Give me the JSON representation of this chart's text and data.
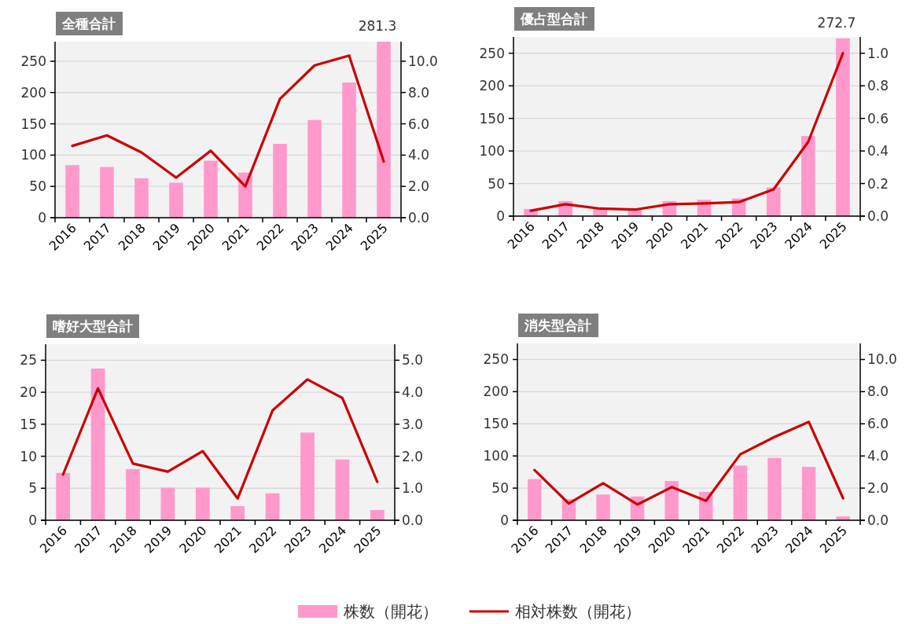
{
  "chart_data": [
    {
      "type": "bar",
      "title": "全種合計",
      "categories": [
        "2016",
        "2017",
        "2018",
        "2019",
        "2020",
        "2021",
        "2022",
        "2023",
        "2024",
        "2025"
      ],
      "ylim": [
        0,
        281.3
      ],
      "yticks": [
        0,
        50,
        100,
        150,
        200,
        250
      ],
      "y2lim": [
        0,
        11.25
      ],
      "y2ticks": [
        {
          "value": 0,
          "label": "0.0"
        },
        {
          "value": 2,
          "label": "2.0"
        },
        {
          "value": 4,
          "label": "4.0"
        },
        {
          "value": 6,
          "label": "6.0"
        },
        {
          "value": 8,
          "label": "8.0"
        },
        {
          "value": 10,
          "label": "10.0"
        }
      ],
      "grid": "y",
      "legend": "bottom",
      "series": [
        {
          "name": "株数（開花）",
          "type": "bar",
          "color": "#ff99cc",
          "values": [
            84,
            81,
            63,
            56,
            91,
            72,
            118,
            156,
            216,
            281.3
          ],
          "value_labels": [
            null,
            null,
            null,
            null,
            null,
            null,
            null,
            null,
            null,
            "281.3"
          ]
        },
        {
          "name": "相対株数（開花）",
          "type": "line",
          "axis": "y2",
          "color": "#cc0000",
          "values": [
            4.59,
            5.26,
            4.17,
            2.56,
            4.28,
            2.0,
            7.59,
            9.73,
            10.36,
            3.59
          ]
        }
      ]
    },
    {
      "type": "bar",
      "title": "優占型合計",
      "categories": [
        "2016",
        "2017",
        "2018",
        "2019",
        "2020",
        "2021",
        "2022",
        "2023",
        "2024",
        "2025"
      ],
      "ylim": [
        0,
        275
      ],
      "yticks": [
        0,
        50,
        100,
        150,
        200,
        250
      ],
      "y2lim": [
        0,
        1.1
      ],
      "y2ticks": [
        {
          "value": 0,
          "label": "0.0"
        },
        {
          "value": 0.2,
          "label": "0.2"
        },
        {
          "value": 0.4,
          "label": "0.4"
        },
        {
          "value": 0.6,
          "label": "0.6"
        },
        {
          "value": 0.8,
          "label": "0.8"
        },
        {
          "value": 1,
          "label": "1.0"
        }
      ],
      "grid": "y",
      "series": [
        {
          "type": "bar",
          "color": "#ff99cc",
          "values": [
            11,
            23,
            13,
            11,
            23,
            25,
            27,
            44,
            123,
            272.7
          ],
          "value_labels": [
            null,
            null,
            null,
            null,
            null,
            null,
            null,
            null,
            null,
            "272.7"
          ]
        },
        {
          "type": "line",
          "axis": "y2",
          "color": "#cc0000",
          "values": [
            0.033,
            0.073,
            0.046,
            0.04,
            0.073,
            0.078,
            0.086,
            0.164,
            0.456,
            1.0
          ]
        }
      ]
    },
    {
      "type": "bar",
      "title": "嗜好大型合計",
      "categories": [
        "2016",
        "2017",
        "2018",
        "2019",
        "2020",
        "2021",
        "2022",
        "2023",
        "2024",
        "2025"
      ],
      "ylim": [
        0,
        27.5
      ],
      "yticks": [
        0,
        5,
        10,
        15,
        20,
        25
      ],
      "y2lim": [
        0,
        5.5
      ],
      "y2ticks": [
        {
          "value": 0,
          "label": "0.0"
        },
        {
          "value": 1,
          "label": "1.0"
        },
        {
          "value": 2,
          "label": "2.0"
        },
        {
          "value": 3,
          "label": "3.0"
        },
        {
          "value": 4,
          "label": "4.0"
        },
        {
          "value": 5,
          "label": "5.0"
        }
      ],
      "grid": "y",
      "series": [
        {
          "type": "bar",
          "color": "#ff99cc",
          "values": [
            7.4,
            23.7,
            8.0,
            5.1,
            5.1,
            2.2,
            4.2,
            13.7,
            9.5,
            1.6
          ]
        },
        {
          "type": "line",
          "axis": "y2",
          "color": "#cc0000",
          "values": [
            1.43,
            4.12,
            1.77,
            1.52,
            2.16,
            0.68,
            3.43,
            4.4,
            3.82,
            1.2
          ]
        }
      ]
    },
    {
      "type": "bar",
      "title": "消失型合計",
      "categories": [
        "2016",
        "2017",
        "2018",
        "2019",
        "2020",
        "2021",
        "2022",
        "2023",
        "2024",
        "2025"
      ],
      "ylim": [
        0,
        275
      ],
      "yticks": [
        0,
        50,
        100,
        150,
        200,
        250
      ],
      "y2lim": [
        0,
        11
      ],
      "y2ticks": [
        {
          "value": 0,
          "label": "0.0"
        },
        {
          "value": 2,
          "label": "2.0"
        },
        {
          "value": 4,
          "label": "4.0"
        },
        {
          "value": 6,
          "label": "6.0"
        },
        {
          "value": 8,
          "label": "8.0"
        },
        {
          "value": 10,
          "label": "10.0"
        }
      ],
      "grid": "y",
      "series": [
        {
          "type": "bar",
          "color": "#ff99cc",
          "values": [
            64,
            33,
            40,
            37,
            61,
            44,
            85,
            97,
            83,
            6
          ]
        },
        {
          "type": "line",
          "axis": "y2",
          "color": "#cc0000",
          "values": [
            3.12,
            1.04,
            2.3,
            0.98,
            2.06,
            1.21,
            4.1,
            5.18,
            6.12,
            1.37
          ]
        }
      ]
    }
  ]
}
